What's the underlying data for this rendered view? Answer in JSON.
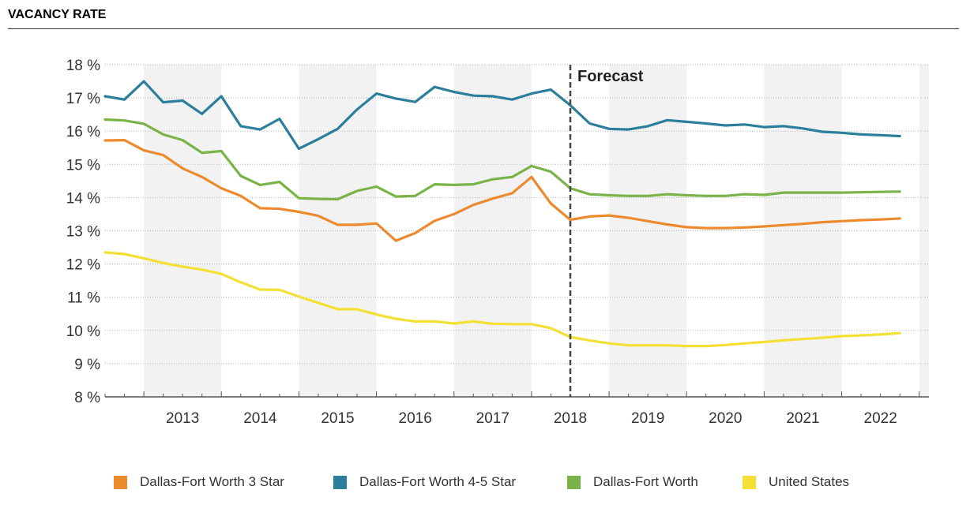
{
  "header": {
    "title": "VACANCY RATE"
  },
  "chart_data": {
    "type": "line",
    "title": "VACANCY RATE",
    "xlabel": "",
    "ylabel": "",
    "ylim": [
      8,
      18
    ],
    "y_ticks": [
      "8 %",
      "9 %",
      "10 %",
      "11 %",
      "12 %",
      "13 %",
      "14 %",
      "15 %",
      "16 %",
      "17 %",
      "18 %"
    ],
    "x_tick_labels": [
      "2013",
      "2014",
      "2015",
      "2016",
      "2017",
      "2018",
      "2019",
      "2020",
      "2021",
      "2022"
    ],
    "x_start": "2012 Q3",
    "x_end": "2022 Q4",
    "x": [
      "2012 Q3",
      "2012 Q4",
      "2013 Q1",
      "2013 Q2",
      "2013 Q3",
      "2013 Q4",
      "2014 Q1",
      "2014 Q2",
      "2014 Q3",
      "2014 Q4",
      "2015 Q1",
      "2015 Q2",
      "2015 Q3",
      "2015 Q4",
      "2016 Q1",
      "2016 Q2",
      "2016 Q3",
      "2016 Q4",
      "2017 Q1",
      "2017 Q2",
      "2017 Q3",
      "2017 Q4",
      "2018 Q1",
      "2018 Q2",
      "2018 Q3",
      "2018 Q4",
      "2019 Q1",
      "2019 Q2",
      "2019 Q3",
      "2019 Q4",
      "2020 Q1",
      "2020 Q2",
      "2020 Q3",
      "2020 Q4",
      "2021 Q1",
      "2021 Q2",
      "2021 Q3",
      "2021 Q4",
      "2022 Q1",
      "2022 Q2",
      "2022 Q3",
      "2022 Q4"
    ],
    "forecast_start": "2018 Q3",
    "forecast_label": "Forecast",
    "grid": true,
    "legend_position": "bottom",
    "series": [
      {
        "name": "Dallas-Fort Worth 3 Star",
        "color": "#ee8a2e",
        "values": [
          15.72,
          15.73,
          15.42,
          15.28,
          14.88,
          14.62,
          14.28,
          14.05,
          13.68,
          13.66,
          13.57,
          13.45,
          13.18,
          13.18,
          13.22,
          12.7,
          12.93,
          13.3,
          13.5,
          13.78,
          13.97,
          14.13,
          14.62,
          13.82,
          13.33,
          13.43,
          13.46,
          13.39,
          13.29,
          13.19,
          13.11,
          13.08,
          13.08,
          13.1,
          13.13,
          13.17,
          13.21,
          13.26,
          13.29,
          13.32,
          13.34,
          13.37
        ]
      },
      {
        "name": "Dallas-Fort Worth 4-5 Star",
        "color": "#2c7f9c",
        "values": [
          17.05,
          16.95,
          17.5,
          16.87,
          16.92,
          16.52,
          17.05,
          16.15,
          16.05,
          16.37,
          15.47,
          15.76,
          16.07,
          16.65,
          17.13,
          16.98,
          16.88,
          17.33,
          17.18,
          17.07,
          17.05,
          16.95,
          17.13,
          17.25,
          16.78,
          16.23,
          16.07,
          16.05,
          16.15,
          16.33,
          16.28,
          16.23,
          16.17,
          16.2,
          16.12,
          16.15,
          16.08,
          15.98,
          15.95,
          15.9,
          15.88,
          15.85
        ]
      },
      {
        "name": "Dallas-Fort Worth",
        "color": "#7ab348",
        "values": [
          16.35,
          16.32,
          16.22,
          15.9,
          15.73,
          15.35,
          15.4,
          14.65,
          14.38,
          14.47,
          13.98,
          13.96,
          13.95,
          14.2,
          14.33,
          14.03,
          14.05,
          14.4,
          14.38,
          14.4,
          14.55,
          14.62,
          14.95,
          14.78,
          14.28,
          14.1,
          14.07,
          14.05,
          14.05,
          14.1,
          14.07,
          14.05,
          14.05,
          14.1,
          14.08,
          14.15,
          14.15,
          14.15,
          14.15,
          14.16,
          14.17,
          14.18
        ]
      },
      {
        "name": "United States",
        "color": "#f4e034",
        "values": [
          12.35,
          12.3,
          12.17,
          12.03,
          11.92,
          11.83,
          11.7,
          11.45,
          11.23,
          11.22,
          11.02,
          10.83,
          10.64,
          10.64,
          10.48,
          10.35,
          10.27,
          10.27,
          10.21,
          10.27,
          10.2,
          10.19,
          10.19,
          10.07,
          9.8,
          9.7,
          9.61,
          9.55,
          9.55,
          9.55,
          9.53,
          9.53,
          9.56,
          9.61,
          9.65,
          9.7,
          9.74,
          9.78,
          9.83,
          9.85,
          9.88,
          9.92
        ]
      }
    ]
  }
}
